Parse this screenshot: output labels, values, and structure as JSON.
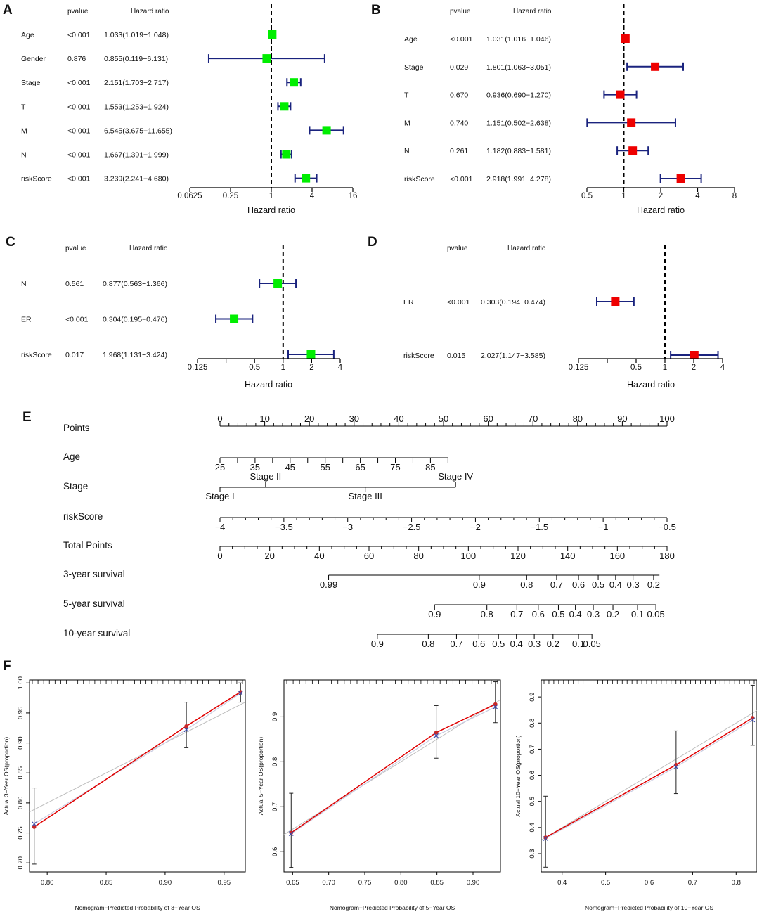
{
  "chart_data": [
    {
      "panel": "A",
      "type": "forest",
      "header_pvalue": "pvalue",
      "header_hr": "Hazard ratio",
      "xlabel": "Hazard ratio",
      "xscale": "log2",
      "xlim": [
        0.0625,
        16
      ],
      "ticks": [
        0.0625,
        0.25,
        1,
        4,
        16
      ],
      "tick_labels": [
        "0.0625",
        "0.25",
        "1",
        "4",
        "16"
      ],
      "marker_color": "#00ee00",
      "rows": [
        {
          "label": "Age",
          "pvalue": "<0.001",
          "hr_text": "1.033(1.019−1.048)",
          "hr": 1.033,
          "lo": 1.019,
          "hi": 1.048
        },
        {
          "label": "Gender",
          "pvalue": "0.876",
          "hr_text": "0.855(0.119−6.131)",
          "hr": 0.855,
          "lo": 0.119,
          "hi": 6.131
        },
        {
          "label": "Stage",
          "pvalue": "<0.001",
          "hr_text": "2.151(1.703−2.717)",
          "hr": 2.151,
          "lo": 1.703,
          "hi": 2.717
        },
        {
          "label": "T",
          "pvalue": "<0.001",
          "hr_text": "1.553(1.253−1.924)",
          "hr": 1.553,
          "lo": 1.253,
          "hi": 1.924
        },
        {
          "label": "M",
          "pvalue": "<0.001",
          "hr_text": "6.545(3.675−11.655)",
          "hr": 6.545,
          "lo": 3.675,
          "hi": 11.655
        },
        {
          "label": "N",
          "pvalue": "<0.001",
          "hr_text": "1.667(1.391−1.999)",
          "hr": 1.667,
          "lo": 1.391,
          "hi": 1.999
        },
        {
          "label": "riskScore",
          "pvalue": "<0.001",
          "hr_text": "3.239(2.241−4.680)",
          "hr": 3.239,
          "lo": 2.241,
          "hi": 4.68
        }
      ]
    },
    {
      "panel": "B",
      "type": "forest",
      "header_pvalue": "pvalue",
      "header_hr": "Hazard ratio",
      "xlabel": "Hazard ratio",
      "xscale": "log2",
      "xlim": [
        0.5,
        8
      ],
      "ticks": [
        0.5,
        1,
        2,
        4,
        8
      ],
      "tick_labels": [
        "0.5",
        "1",
        "2",
        "4",
        "8"
      ],
      "marker_color": "#ee0000",
      "rows": [
        {
          "label": "Age",
          "pvalue": "<0.001",
          "hr_text": "1.031(1.016−1.046)",
          "hr": 1.031,
          "lo": 1.016,
          "hi": 1.046
        },
        {
          "label": "Stage",
          "pvalue": "0.029",
          "hr_text": "1.801(1.063−3.051)",
          "hr": 1.801,
          "lo": 1.063,
          "hi": 3.051
        },
        {
          "label": "T",
          "pvalue": "0.670",
          "hr_text": "0.936(0.690−1.270)",
          "hr": 0.936,
          "lo": 0.69,
          "hi": 1.27
        },
        {
          "label": "M",
          "pvalue": "0.740",
          "hr_text": "1.151(0.502−2.638)",
          "hr": 1.151,
          "lo": 0.502,
          "hi": 2.638
        },
        {
          "label": "N",
          "pvalue": "0.261",
          "hr_text": "1.182(0.883−1.581)",
          "hr": 1.182,
          "lo": 0.883,
          "hi": 1.581
        },
        {
          "label": "riskScore",
          "pvalue": "<0.001",
          "hr_text": "2.918(1.991−4.278)",
          "hr": 2.918,
          "lo": 1.991,
          "hi": 4.278
        }
      ]
    },
    {
      "panel": "C",
      "type": "forest",
      "header_pvalue": "pvalue",
      "header_hr": "Hazard ratio",
      "xlabel": "Hazard ratio",
      "xscale": "log2",
      "xlim": [
        0.125,
        4
      ],
      "ticks": [
        0.125,
        0.25,
        0.5,
        1,
        2,
        4
      ],
      "tick_labels": [
        "0.125",
        "",
        "0.5",
        "1",
        "2",
        "4"
      ],
      "marker_color": "#00ee00",
      "rows": [
        {
          "label": "N",
          "pvalue": "0.561",
          "hr_text": "0.877(0.563−1.366)",
          "hr": 0.877,
          "lo": 0.563,
          "hi": 1.366
        },
        {
          "label": "ER",
          "pvalue": "<0.001",
          "hr_text": "0.304(0.195−0.476)",
          "hr": 0.304,
          "lo": 0.195,
          "hi": 0.476
        },
        {
          "label": "riskScore",
          "pvalue": "0.017",
          "hr_text": "1.968(1.131−3.424)",
          "hr": 1.968,
          "lo": 1.131,
          "hi": 3.424
        }
      ]
    },
    {
      "panel": "D",
      "type": "forest",
      "header_pvalue": "pvalue",
      "header_hr": "Hazard ratio",
      "xlabel": "Hazard ratio",
      "xscale": "log2",
      "xlim": [
        0.125,
        4
      ],
      "ticks": [
        0.125,
        0.25,
        0.5,
        1,
        2,
        4
      ],
      "tick_labels": [
        "0.125",
        "",
        "0.5",
        "1",
        "2",
        "4"
      ],
      "marker_color": "#ee0000",
      "rows": [
        {
          "label": "ER",
          "pvalue": "<0.001",
          "hr_text": "0.303(0.194−0.474)",
          "hr": 0.303,
          "lo": 0.194,
          "hi": 0.474
        },
        {
          "label": "riskScore",
          "pvalue": "0.015",
          "hr_text": "2.027(1.147−3.585)",
          "hr": 2.027,
          "lo": 1.147,
          "hi": 3.585
        }
      ]
    },
    {
      "panel": "E",
      "type": "nomogram",
      "scales": [
        {
          "label": "Points",
          "kind": "linear",
          "from": 0,
          "to": 100,
          "fromPt": 0,
          "toPt": 100,
          "labels": [
            "0",
            "10",
            "20",
            "30",
            "40",
            "50",
            "60",
            "70",
            "80",
            "90",
            "100"
          ],
          "minor_per": 5,
          "label_pos": "above"
        },
        {
          "label": "Age",
          "kind": "linear",
          "from": 25,
          "to": 90,
          "fromPt": 0,
          "toPt": 51,
          "labels": [
            "25",
            "35",
            "45",
            "55",
            "65",
            "75",
            "85"
          ],
          "label_values": [
            25,
            35,
            45,
            55,
            65,
            75,
            85
          ],
          "ticks": [
            25,
            30,
            35,
            40,
            45,
            50,
            55,
            60,
            65,
            70,
            75,
            80,
            85,
            90
          ],
          "label_pos": "below"
        },
        {
          "label": "Stage",
          "kind": "categorical",
          "categories": [
            {
              "name": "Stage I",
              "pt": 0,
              "pos": "below"
            },
            {
              "name": "Stage II",
              "pt": 10.2,
              "pos": "above"
            },
            {
              "name": "Stage III",
              "pt": 32.5,
              "pos": "below"
            },
            {
              "name": "Stage IV",
              "pt": 52.7,
              "pos": "above"
            }
          ]
        },
        {
          "label": "riskScore",
          "kind": "linear",
          "from": -4,
          "to": -0.5,
          "fromPt": 0,
          "toPt": 100,
          "labels": [
            "−4",
            "−3.5",
            "−3",
            "−2.5",
            "−2",
            "−1.5",
            "−1",
            "−0.5"
          ],
          "label_values": [
            -4,
            -3.5,
            -3,
            -2.5,
            -2,
            -1.5,
            -1,
            -0.5
          ],
          "minor_per": 5,
          "label_pos": "below"
        },
        {
          "label": "Total Points",
          "kind": "linear",
          "from": 0,
          "to": 180,
          "fromPt": 0,
          "toPt": 100,
          "labels": [
            "0",
            "20",
            "40",
            "60",
            "80",
            "100",
            "120",
            "140",
            "160",
            "180"
          ],
          "label_values": [
            0,
            20,
            40,
            60,
            80,
            100,
            120,
            140,
            160,
            180
          ],
          "minor_per": 4,
          "label_pos": "below"
        },
        {
          "label": "3-year survival",
          "kind": "mapped",
          "line_from_pt": 24.3,
          "line_to_pt": 98.3,
          "points": [
            {
              "v": "0.99",
              "pt": 24.3
            },
            {
              "v": "0.9",
              "pt": 58.0
            },
            {
              "v": "0.8",
              "pt": 68.6
            },
            {
              "v": "0.7",
              "pt": 75.3
            },
            {
              "v": "0.6",
              "pt": 80.2
            },
            {
              "v": "0.5",
              "pt": 84.6
            },
            {
              "v": "0.4",
              "pt": 88.5
            },
            {
              "v": "0.3",
              "pt": 92.4
            },
            {
              "v": "0.2",
              "pt": 97.0
            }
          ]
        },
        {
          "label": "5-year survival",
          "kind": "mapped",
          "line_from_pt": 48.0,
          "line_to_pt": 97.5,
          "points": [
            {
              "v": "0.9",
              "pt": 48.0
            },
            {
              "v": "0.8",
              "pt": 59.7
            },
            {
              "v": "0.7",
              "pt": 66.4
            },
            {
              "v": "0.6",
              "pt": 71.2
            },
            {
              "v": "0.5",
              "pt": 75.7
            },
            {
              "v": "0.4",
              "pt": 79.5
            },
            {
              "v": "0.3",
              "pt": 83.5
            },
            {
              "v": "0.2",
              "pt": 87.9
            },
            {
              "v": "0.1",
              "pt": 93.4
            },
            {
              "v": "0.05",
              "pt": 97.5
            }
          ]
        },
        {
          "label": "10-year survival",
          "kind": "mapped",
          "line_from_pt": 35.2,
          "line_to_pt": 83.2,
          "points": [
            {
              "v": "0.9",
              "pt": 35.2
            },
            {
              "v": "0.8",
              "pt": 46.6
            },
            {
              "v": "0.7",
              "pt": 52.9
            },
            {
              "v": "0.6",
              "pt": 57.9
            },
            {
              "v": "0.5",
              "pt": 62.3
            },
            {
              "v": "0.4",
              "pt": 66.3
            },
            {
              "v": "0.3",
              "pt": 70.3
            },
            {
              "v": "0.2",
              "pt": 74.5
            },
            {
              "v": "0.1",
              "pt": 80.2
            },
            {
              "v": "0.05",
              "pt": 83.2
            }
          ]
        }
      ]
    },
    {
      "panel": "F",
      "type": "calibration",
      "plots": [
        {
          "xlabel": "Nomogram−Predicted Probability of 3−Year OS",
          "ylabel": "Actual 3−Year OS(proportion)",
          "xlim": [
            0.785,
            0.968
          ],
          "ylim": [
            0.685,
            1.005
          ],
          "xticks": [
            0.8,
            0.85,
            0.9,
            0.95
          ],
          "xtick_labels": [
            "0.80",
            "0.85",
            "0.90",
            "0.95"
          ],
          "yticks": [
            0.7,
            0.75,
            0.8,
            0.85,
            0.9,
            0.95,
            1.0
          ],
          "ytick_labels": [
            "0.70",
            "0.75",
            "0.80",
            "0.85",
            "0.90",
            "0.95",
            "1.00"
          ],
          "points": [
            {
              "x": 0.789,
              "y": 0.76,
              "lo": 0.698,
              "hi": 0.825
            },
            {
              "x": 0.918,
              "y": 0.928,
              "lo": 0.892,
              "hi": 0.968
            },
            {
              "x": 0.964,
              "y": 0.985,
              "lo": 0.968,
              "hi": 1.0
            }
          ],
          "corrected": [
            {
              "x": 0.789,
              "y": 0.765
            },
            {
              "x": 0.918,
              "y": 0.922
            },
            {
              "x": 0.964,
              "y": 0.983
            }
          ],
          "rug_count": 38
        },
        {
          "xlabel": "Nomogram−Predicted Probability of 5−Year OS",
          "ylabel": "Actual 5−Year OS(proportion)",
          "xlim": [
            0.638,
            0.938
          ],
          "ylim": [
            0.555,
            0.982
          ],
          "xticks": [
            0.65,
            0.7,
            0.75,
            0.8,
            0.85,
            0.9
          ],
          "xtick_labels": [
            "0.65",
            "0.70",
            "0.75",
            "0.80",
            "0.85",
            "0.90"
          ],
          "yticks": [
            0.6,
            0.7,
            0.8,
            0.9
          ],
          "ytick_labels": [
            "0.6",
            "0.7",
            "0.8",
            "0.9"
          ],
          "points": [
            {
              "x": 0.648,
              "y": 0.642,
              "lo": 0.565,
              "hi": 0.73
            },
            {
              "x": 0.849,
              "y": 0.865,
              "lo": 0.808,
              "hi": 0.925
            },
            {
              "x": 0.931,
              "y": 0.928,
              "lo": 0.887,
              "hi": 0.978
            }
          ],
          "corrected": [
            {
              "x": 0.648,
              "y": 0.64
            },
            {
              "x": 0.849,
              "y": 0.858
            },
            {
              "x": 0.931,
              "y": 0.922
            }
          ],
          "rug_count": 34
        },
        {
          "xlabel": "Nomogram−Predicted Probability of 10−Year OS",
          "ylabel": "Actual 10−Year OS(proportion)",
          "xlim": [
            0.352,
            0.848
          ],
          "ylim": [
            0.23,
            0.965
          ],
          "xticks": [
            0.4,
            0.5,
            0.6,
            0.7,
            0.8
          ],
          "xtick_labels": [
            "0.4",
            "0.5",
            "0.6",
            "0.7",
            "0.8"
          ],
          "yticks": [
            0.3,
            0.4,
            0.5,
            0.6,
            0.7,
            0.8,
            0.9
          ],
          "ytick_labels": [
            "0.3",
            "0.4",
            "0.5",
            "0.6",
            "0.7",
            "0.8",
            "0.9"
          ],
          "points": [
            {
              "x": 0.362,
              "y": 0.362,
              "lo": 0.248,
              "hi": 0.52
            },
            {
              "x": 0.662,
              "y": 0.64,
              "lo": 0.53,
              "hi": 0.77
            },
            {
              "x": 0.838,
              "y": 0.82,
              "lo": 0.715,
              "hi": 0.945
            }
          ],
          "corrected": [
            {
              "x": 0.362,
              "y": 0.358
            },
            {
              "x": 0.662,
              "y": 0.632
            },
            {
              "x": 0.838,
              "y": 0.812
            }
          ],
          "rug_count": 44
        }
      ]
    }
  ],
  "panel_letters": [
    "A",
    "B",
    "C",
    "D",
    "E",
    "F"
  ]
}
